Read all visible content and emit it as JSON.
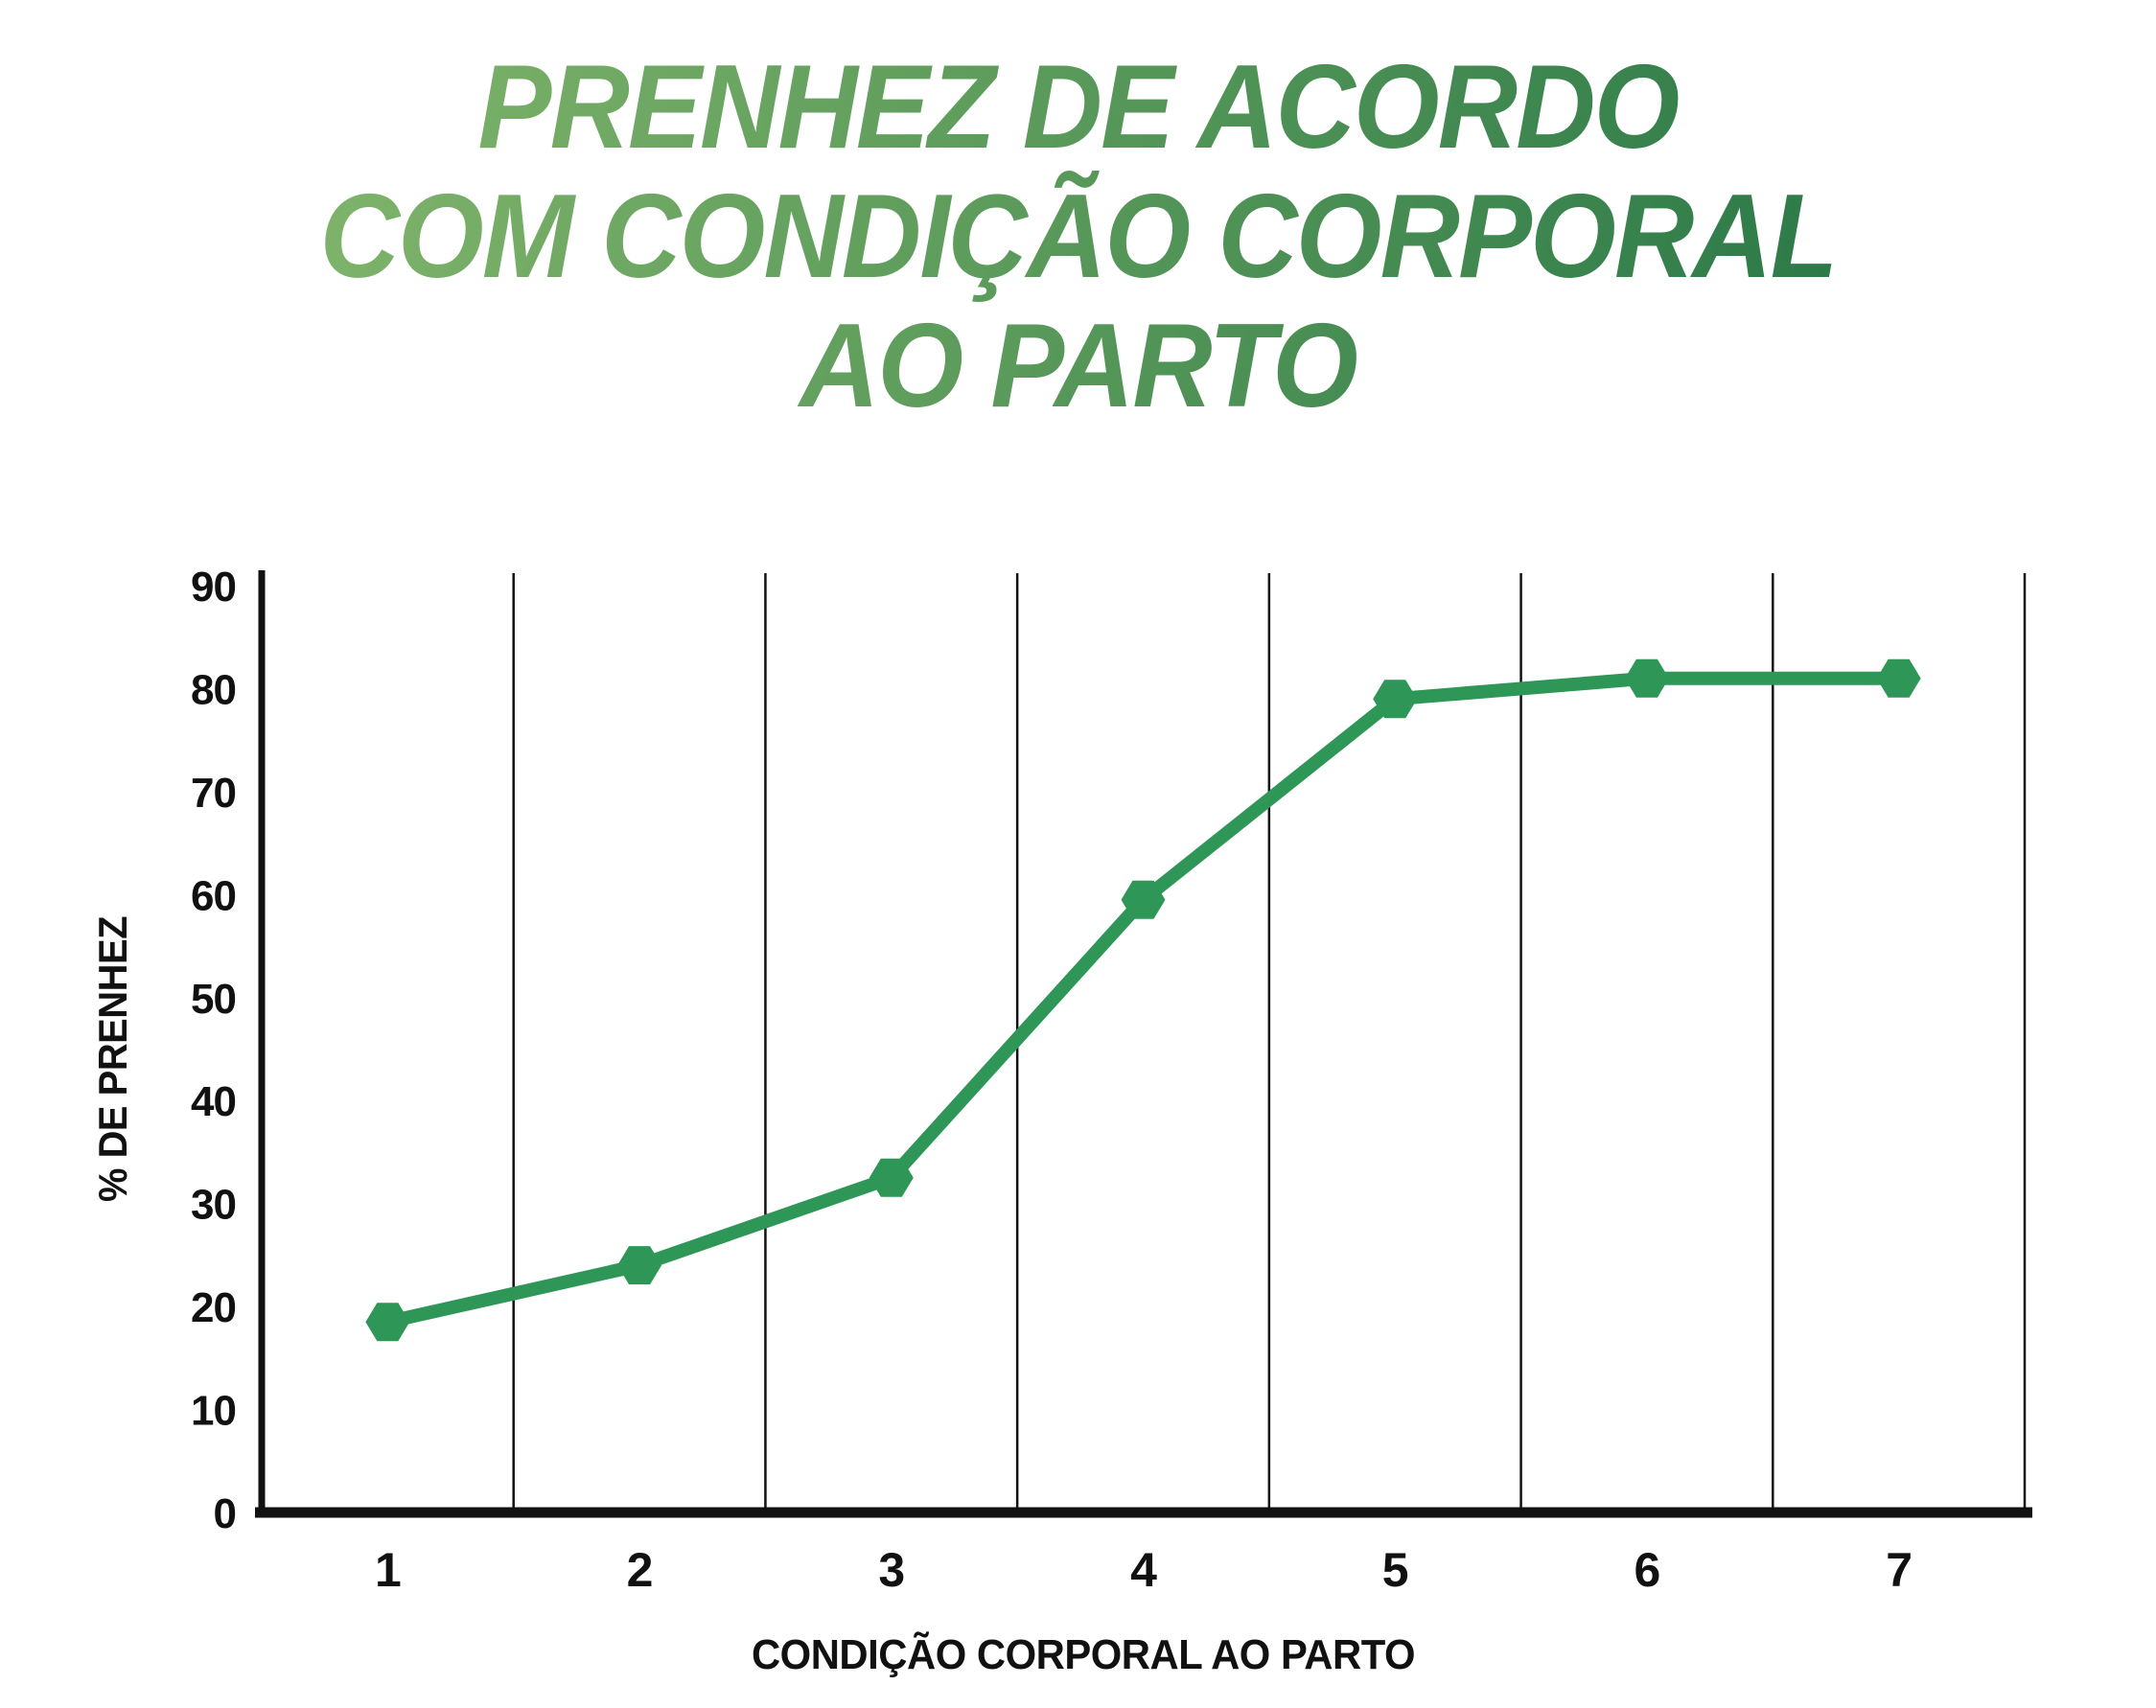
{
  "title": {
    "lines": [
      "PRENHEZ DE ACORDO",
      "COM CONDIÇÃO CORPORAL",
      "AO PARTO"
    ]
  },
  "colors": {
    "line": "#2e9656",
    "marker": "#2e9656",
    "axis": "#111111",
    "tick_text": "#111111",
    "title_gradient_start": "#8cbc70",
    "title_gradient_end": "#1d6f42",
    "background": "#ffffff"
  },
  "chart_data": {
    "type": "line",
    "categories": [
      "1",
      "2",
      "3",
      "4",
      "5",
      "6",
      "7"
    ],
    "values": [
      18.5,
      24,
      32.5,
      59.5,
      79,
      81,
      81
    ],
    "title": "PRENHEZ DE ACORDO COM CONDIÇÃO CORPORAL AO PARTO",
    "xlabel": "CONDIÇÃO CORPORAL AO PARTO",
    "ylabel": "% DE PRENHEZ",
    "ylim": [
      0,
      90
    ],
    "yticks": [
      0,
      10,
      20,
      30,
      40,
      50,
      60,
      70,
      80,
      90
    ],
    "grid": {
      "vertical": true,
      "horizontal": false
    },
    "legend": "none",
    "marker": "hexagon"
  }
}
